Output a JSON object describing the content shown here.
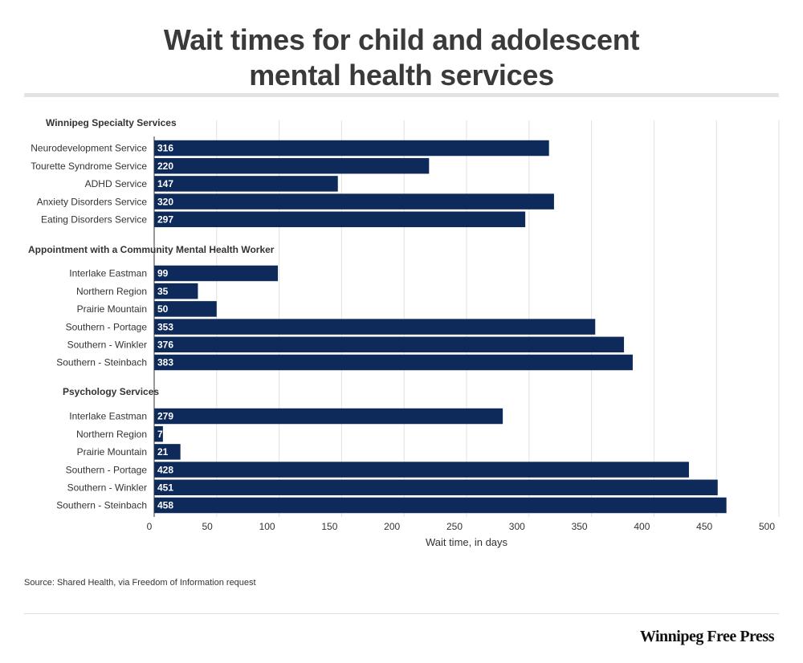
{
  "title_line1": "Wait times for child and adolescent",
  "title_line2": "mental health services",
  "source": "Source: Shared Health, via Freedom of Information request",
  "brand": "Winnipeg Free Press",
  "colors": {
    "bar": "#0e2a5a",
    "grid": "#e2e2e2",
    "text": "#333333"
  },
  "chart_data": {
    "type": "bar",
    "orientation": "horizontal",
    "xlabel": "Wait time, in days",
    "xlim": [
      0,
      500
    ],
    "xticks": [
      0,
      50,
      100,
      150,
      200,
      250,
      300,
      350,
      400,
      450,
      500
    ],
    "grid": true,
    "groups": [
      {
        "name": "Winnipeg Specialty Services",
        "categories": [
          "Neurodevelopment Service",
          "Tourette Syndrome Service",
          "ADHD Service",
          "Anxiety Disorders Service",
          "Eating Disorders Service"
        ],
        "values": [
          316,
          220,
          147,
          320,
          297
        ]
      },
      {
        "name": "Appointment with a Community Mental Health Worker",
        "categories": [
          "Interlake Eastman",
          "Northern Region",
          "Prairie Mountain",
          "Southern - Portage",
          "Southern - Winkler",
          "Southern - Steinbach"
        ],
        "values": [
          99,
          35,
          50,
          353,
          376,
          383
        ]
      },
      {
        "name": "Psychology Services",
        "categories": [
          "Interlake Eastman",
          "Northern Region",
          "Prairie Mountain",
          "Southern - Portage",
          "Southern - Winkler",
          "Southern - Steinbach"
        ],
        "values": [
          279,
          7,
          21,
          428,
          451,
          458
        ]
      }
    ]
  }
}
